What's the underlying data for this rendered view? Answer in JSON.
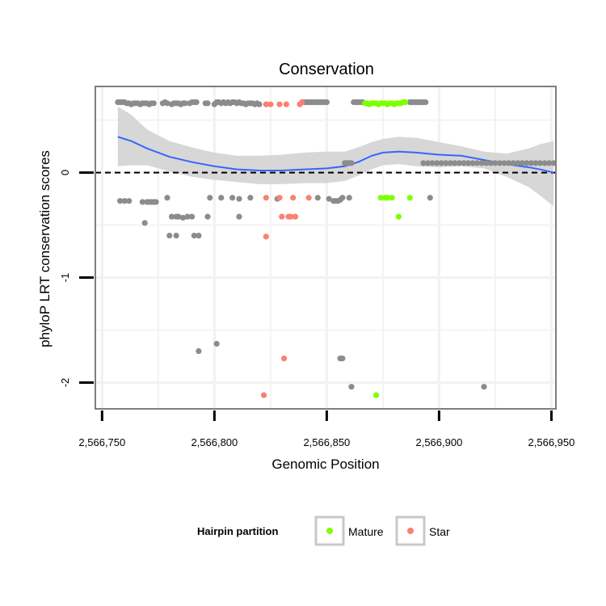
{
  "chart_data": {
    "type": "scatter",
    "title": "Conservation",
    "xlabel": "Genomic Position",
    "ylabel": "phyloP LRT conservation scores",
    "xlim": [
      2566747,
      2566952
    ],
    "ylim": [
      -2.25,
      0.82
    ],
    "x_ticks": [
      2566750,
      2566800,
      2566850,
      2566900,
      2566950
    ],
    "x_tick_labels": [
      "2,566,750",
      "2,566,800",
      "2,566,850",
      "2,566,900",
      "2,566,950"
    ],
    "y_ticks": [
      0,
      -1,
      -2
    ],
    "y_tick_labels": [
      "0",
      "-1",
      "-2"
    ],
    "reference_line": {
      "y": 0,
      "style": "dashed"
    },
    "legend": {
      "title": "Hairpin partition",
      "position": "bottom",
      "entries": [
        {
          "label": "Mature",
          "color": "#7fff00"
        },
        {
          "label": "Star",
          "color": "#fa8072"
        }
      ]
    },
    "colors": {
      "other": "#8c8c8c",
      "mature": "#7fff00",
      "star": "#fa8072",
      "smooth": "#3366ff",
      "band": "#d3d3d3"
    },
    "series": [
      {
        "name": "Other",
        "points": [
          [
            2566757,
            0.67
          ],
          [
            2566758,
            0.67
          ],
          [
            2566759,
            0.67
          ],
          [
            2566760,
            0.67
          ],
          [
            2566761,
            0.66
          ],
          [
            2566762,
            0.66
          ],
          [
            2566763,
            0.65
          ],
          [
            2566764,
            0.66
          ],
          [
            2566765,
            0.66
          ],
          [
            2566766,
            0.66
          ],
          [
            2566767,
            0.65
          ],
          [
            2566768,
            0.66
          ],
          [
            2566769,
            0.66
          ],
          [
            2566770,
            0.66
          ],
          [
            2566771,
            0.65
          ],
          [
            2566772,
            0.66
          ],
          [
            2566773,
            0.66
          ],
          [
            2566777,
            0.66
          ],
          [
            2566778,
            0.67
          ],
          [
            2566779,
            0.66
          ],
          [
            2566781,
            0.65
          ],
          [
            2566782,
            0.66
          ],
          [
            2566783,
            0.66
          ],
          [
            2566784,
            0.66
          ],
          [
            2566785,
            0.65
          ],
          [
            2566786,
            0.66
          ],
          [
            2566787,
            0.66
          ],
          [
            2566789,
            0.66
          ],
          [
            2566790,
            0.67
          ],
          [
            2566791,
            0.67
          ],
          [
            2566792,
            0.67
          ],
          [
            2566796,
            0.66
          ],
          [
            2566797,
            0.66
          ],
          [
            2566800,
            0.65
          ],
          [
            2566801,
            0.67
          ],
          [
            2566802,
            0.67
          ],
          [
            2566803,
            0.66
          ],
          [
            2566804,
            0.67
          ],
          [
            2566805,
            0.66
          ],
          [
            2566806,
            0.67
          ],
          [
            2566807,
            0.66
          ],
          [
            2566808,
            0.67
          ],
          [
            2566809,
            0.67
          ],
          [
            2566810,
            0.66
          ],
          [
            2566811,
            0.67
          ],
          [
            2566812,
            0.66
          ],
          [
            2566813,
            0.66
          ],
          [
            2566814,
            0.65
          ],
          [
            2566815,
            0.66
          ],
          [
            2566816,
            0.66
          ],
          [
            2566817,
            0.66
          ],
          [
            2566818,
            0.65
          ],
          [
            2566819,
            0.66
          ],
          [
            2566820,
            0.65
          ],
          [
            2566840,
            0.67
          ],
          [
            2566841,
            0.67
          ],
          [
            2566842,
            0.67
          ],
          [
            2566843,
            0.67
          ],
          [
            2566844,
            0.67
          ],
          [
            2566845,
            0.67
          ],
          [
            2566846,
            0.67
          ],
          [
            2566847,
            0.67
          ],
          [
            2566848,
            0.67
          ],
          [
            2566849,
            0.67
          ],
          [
            2566850,
            0.67
          ],
          [
            2566862,
            0.67
          ],
          [
            2566863,
            0.67
          ],
          [
            2566864,
            0.67
          ],
          [
            2566865,
            0.67
          ],
          [
            2566866,
            0.67
          ],
          [
            2566887,
            0.67
          ],
          [
            2566888,
            0.67
          ],
          [
            2566889,
            0.67
          ],
          [
            2566890,
            0.67
          ],
          [
            2566891,
            0.67
          ],
          [
            2566892,
            0.67
          ],
          [
            2566893,
            0.67
          ],
          [
            2566894,
            0.67
          ],
          [
            2566858,
            0.09
          ],
          [
            2566859,
            0.09
          ],
          [
            2566860,
            0.09
          ],
          [
            2566861,
            0.09
          ],
          [
            2566893,
            0.09
          ],
          [
            2566895,
            0.09
          ],
          [
            2566897,
            0.09
          ],
          [
            2566899,
            0.09
          ],
          [
            2566901,
            0.09
          ],
          [
            2566903,
            0.09
          ],
          [
            2566905,
            0.09
          ],
          [
            2566907,
            0.09
          ],
          [
            2566909,
            0.09
          ],
          [
            2566911,
            0.09
          ],
          [
            2566913,
            0.09
          ],
          [
            2566915,
            0.09
          ],
          [
            2566917,
            0.09
          ],
          [
            2566919,
            0.09
          ],
          [
            2566921,
            0.09
          ],
          [
            2566923,
            0.09
          ],
          [
            2566925,
            0.09
          ],
          [
            2566927,
            0.09
          ],
          [
            2566929,
            0.09
          ],
          [
            2566931,
            0.09
          ],
          [
            2566933,
            0.09
          ],
          [
            2566935,
            0.09
          ],
          [
            2566937,
            0.09
          ],
          [
            2566939,
            0.09
          ],
          [
            2566941,
            0.09
          ],
          [
            2566943,
            0.09
          ],
          [
            2566945,
            0.09
          ],
          [
            2566947,
            0.09
          ],
          [
            2566949,
            0.09
          ],
          [
            2566951,
            0.09
          ],
          [
            2566758,
            -0.27
          ],
          [
            2566760,
            -0.27
          ],
          [
            2566762,
            -0.27
          ],
          [
            2566768,
            -0.28
          ],
          [
            2566770,
            -0.28
          ],
          [
            2566771,
            -0.28
          ],
          [
            2566772,
            -0.28
          ],
          [
            2566773,
            -0.28
          ],
          [
            2566774,
            -0.28
          ],
          [
            2566779,
            -0.24
          ],
          [
            2566798,
            -0.24
          ],
          [
            2566803,
            -0.24
          ],
          [
            2566808,
            -0.24
          ],
          [
            2566811,
            -0.25
          ],
          [
            2566816,
            -0.24
          ],
          [
            2566828,
            -0.25
          ],
          [
            2566846,
            -0.24
          ],
          [
            2566851,
            -0.25
          ],
          [
            2566853,
            -0.27
          ],
          [
            2566854,
            -0.27
          ],
          [
            2566855,
            -0.27
          ],
          [
            2566856,
            -0.26
          ],
          [
            2566857,
            -0.24
          ],
          [
            2566860,
            -0.24
          ],
          [
            2566896,
            -0.24
          ],
          [
            2566769,
            -0.48
          ],
          [
            2566781,
            -0.42
          ],
          [
            2566783,
            -0.42
          ],
          [
            2566784,
            -0.42
          ],
          [
            2566786,
            -0.43
          ],
          [
            2566788,
            -0.42
          ],
          [
            2566790,
            -0.42
          ],
          [
            2566797,
            -0.42
          ],
          [
            2566811,
            -0.42
          ],
          [
            2566780,
            -0.6
          ],
          [
            2566783,
            -0.6
          ],
          [
            2566791,
            -0.6
          ],
          [
            2566793,
            -0.6
          ],
          [
            2566793,
            -1.7
          ],
          [
            2566801,
            -1.63
          ],
          [
            2566856,
            -1.77
          ],
          [
            2566857,
            -1.77
          ],
          [
            2566861,
            -2.04
          ],
          [
            2566920,
            -2.04
          ]
        ]
      },
      {
        "name": "Mature",
        "points": [
          [
            2566867,
            0.66
          ],
          [
            2566868,
            0.66
          ],
          [
            2566869,
            0.65
          ],
          [
            2566870,
            0.66
          ],
          [
            2566871,
            0.66
          ],
          [
            2566872,
            0.66
          ],
          [
            2566873,
            0.65
          ],
          [
            2566874,
            0.66
          ],
          [
            2566875,
            0.66
          ],
          [
            2566876,
            0.66
          ],
          [
            2566877,
            0.65
          ],
          [
            2566878,
            0.66
          ],
          [
            2566879,
            0.66
          ],
          [
            2566880,
            0.65
          ],
          [
            2566881,
            0.66
          ],
          [
            2566882,
            0.66
          ],
          [
            2566883,
            0.66
          ],
          [
            2566884,
            0.67
          ],
          [
            2566885,
            0.67
          ],
          [
            2566874,
            -0.24
          ],
          [
            2566876,
            -0.24
          ],
          [
            2566877,
            -0.24
          ],
          [
            2566879,
            -0.24
          ],
          [
            2566887,
            -0.24
          ],
          [
            2566882,
            -0.42
          ],
          [
            2566872,
            -2.12
          ]
        ]
      },
      {
        "name": "Star",
        "points": [
          [
            2566823,
            0.65
          ],
          [
            2566825,
            0.65
          ],
          [
            2566829,
            0.65
          ],
          [
            2566832,
            0.65
          ],
          [
            2566838,
            0.65
          ],
          [
            2566839,
            0.67
          ],
          [
            2566823,
            -0.24
          ],
          [
            2566829,
            -0.24
          ],
          [
            2566835,
            -0.24
          ],
          [
            2566842,
            -0.24
          ],
          [
            2566830,
            -0.42
          ],
          [
            2566833,
            -0.42
          ],
          [
            2566834,
            -0.42
          ],
          [
            2566836,
            -0.42
          ],
          [
            2566823,
            -0.61
          ],
          [
            2566831,
            -1.77
          ],
          [
            2566822,
            -2.12
          ]
        ]
      }
    ],
    "smooth_line": {
      "name": "Smoothed fit",
      "points": [
        [
          2566757,
          0.34
        ],
        [
          2566763,
          0.3
        ],
        [
          2566770,
          0.23
        ],
        [
          2566780,
          0.15
        ],
        [
          2566790,
          0.1
        ],
        [
          2566800,
          0.06
        ],
        [
          2566810,
          0.03
        ],
        [
          2566820,
          0.02
        ],
        [
          2566830,
          0.02
        ],
        [
          2566840,
          0.03
        ],
        [
          2566850,
          0.04
        ],
        [
          2566858,
          0.06
        ],
        [
          2566864,
          0.1
        ],
        [
          2566870,
          0.16
        ],
        [
          2566875,
          0.19
        ],
        [
          2566882,
          0.2
        ],
        [
          2566890,
          0.19
        ],
        [
          2566900,
          0.17
        ],
        [
          2566910,
          0.16
        ],
        [
          2566920,
          0.12
        ],
        [
          2566930,
          0.08
        ],
        [
          2566940,
          0.05
        ],
        [
          2566945,
          0.03
        ],
        [
          2566951,
          0.0
        ]
      ],
      "band_upper": [
        [
          2566757,
          0.63
        ],
        [
          2566763,
          0.55
        ],
        [
          2566770,
          0.41
        ],
        [
          2566780,
          0.3
        ],
        [
          2566790,
          0.24
        ],
        [
          2566800,
          0.19
        ],
        [
          2566810,
          0.16
        ],
        [
          2566820,
          0.16
        ],
        [
          2566830,
          0.17
        ],
        [
          2566840,
          0.19
        ],
        [
          2566850,
          0.2
        ],
        [
          2566858,
          0.2
        ],
        [
          2566864,
          0.24
        ],
        [
          2566870,
          0.29
        ],
        [
          2566875,
          0.32
        ],
        [
          2566882,
          0.34
        ],
        [
          2566890,
          0.33
        ],
        [
          2566900,
          0.29
        ],
        [
          2566910,
          0.25
        ],
        [
          2566920,
          0.2
        ],
        [
          2566930,
          0.18
        ],
        [
          2566940,
          0.23
        ],
        [
          2566945,
          0.27
        ],
        [
          2566951,
          0.3
        ]
      ],
      "band_lower": [
        [
          2566757,
          0.06
        ],
        [
          2566763,
          0.07
        ],
        [
          2566770,
          0.07
        ],
        [
          2566780,
          0.01
        ],
        [
          2566790,
          -0.04
        ],
        [
          2566800,
          -0.07
        ],
        [
          2566810,
          -0.09
        ],
        [
          2566820,
          -0.11
        ],
        [
          2566830,
          -0.11
        ],
        [
          2566840,
          -0.1
        ],
        [
          2566850,
          -0.1
        ],
        [
          2566858,
          -0.08
        ],
        [
          2566864,
          -0.03
        ],
        [
          2566870,
          0.03
        ],
        [
          2566875,
          0.07
        ],
        [
          2566882,
          0.08
        ],
        [
          2566890,
          0.06
        ],
        [
          2566900,
          0.05
        ],
        [
          2566910,
          0.06
        ],
        [
          2566920,
          0.04
        ],
        [
          2566930,
          -0.04
        ],
        [
          2566940,
          -0.14
        ],
        [
          2566945,
          -0.22
        ],
        [
          2566951,
          -0.32
        ]
      ]
    }
  }
}
